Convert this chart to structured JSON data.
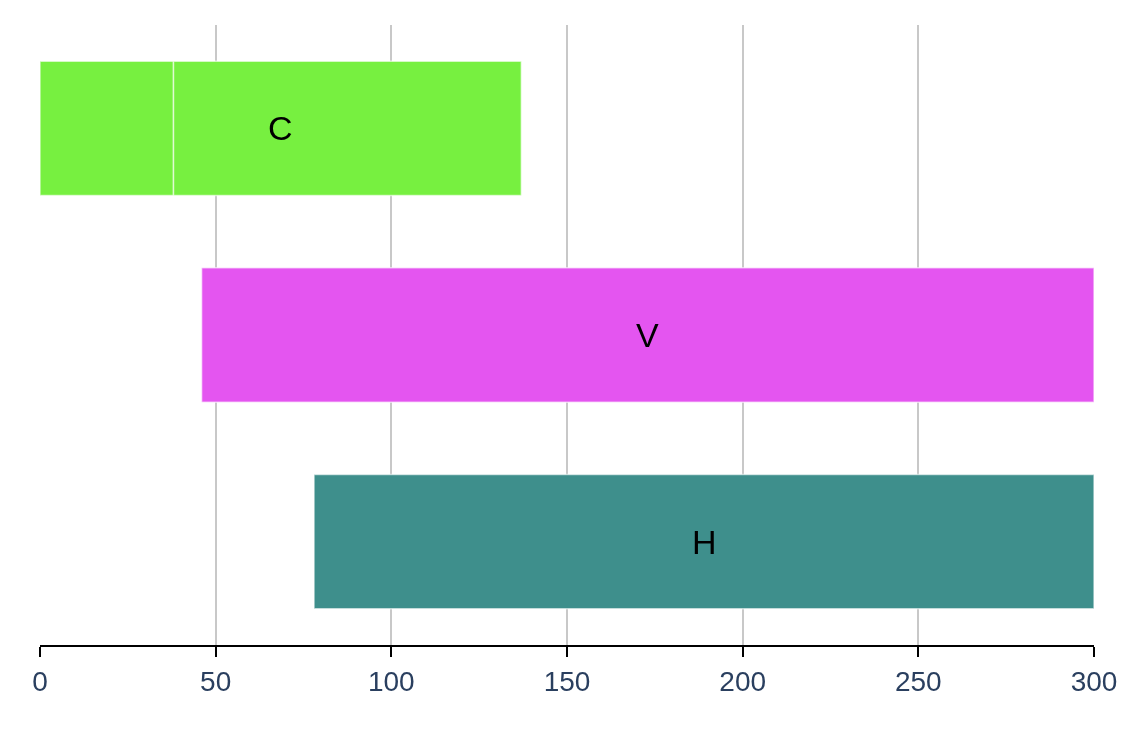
{
  "chart_data": {
    "type": "bar",
    "orientation": "horizontal",
    "categories": [
      "C",
      "V",
      "H"
    ],
    "series": [
      {
        "colors": [
          "#77f040",
          "#e455f0",
          "#3e8f8c"
        ],
        "base": [
          0,
          46,
          78
        ],
        "values": [
          38,
          254,
          222
        ]
      },
      {
        "colors": [
          "#77f040",
          null,
          null
        ],
        "base": [
          38,
          null,
          null
        ],
        "values": [
          99,
          null,
          null
        ]
      }
    ],
    "xlim": [
      0,
      300
    ],
    "xticks": [
      0,
      50,
      100,
      150,
      200,
      250,
      300
    ],
    "grid": "x",
    "tick_labels": "x"
  }
}
